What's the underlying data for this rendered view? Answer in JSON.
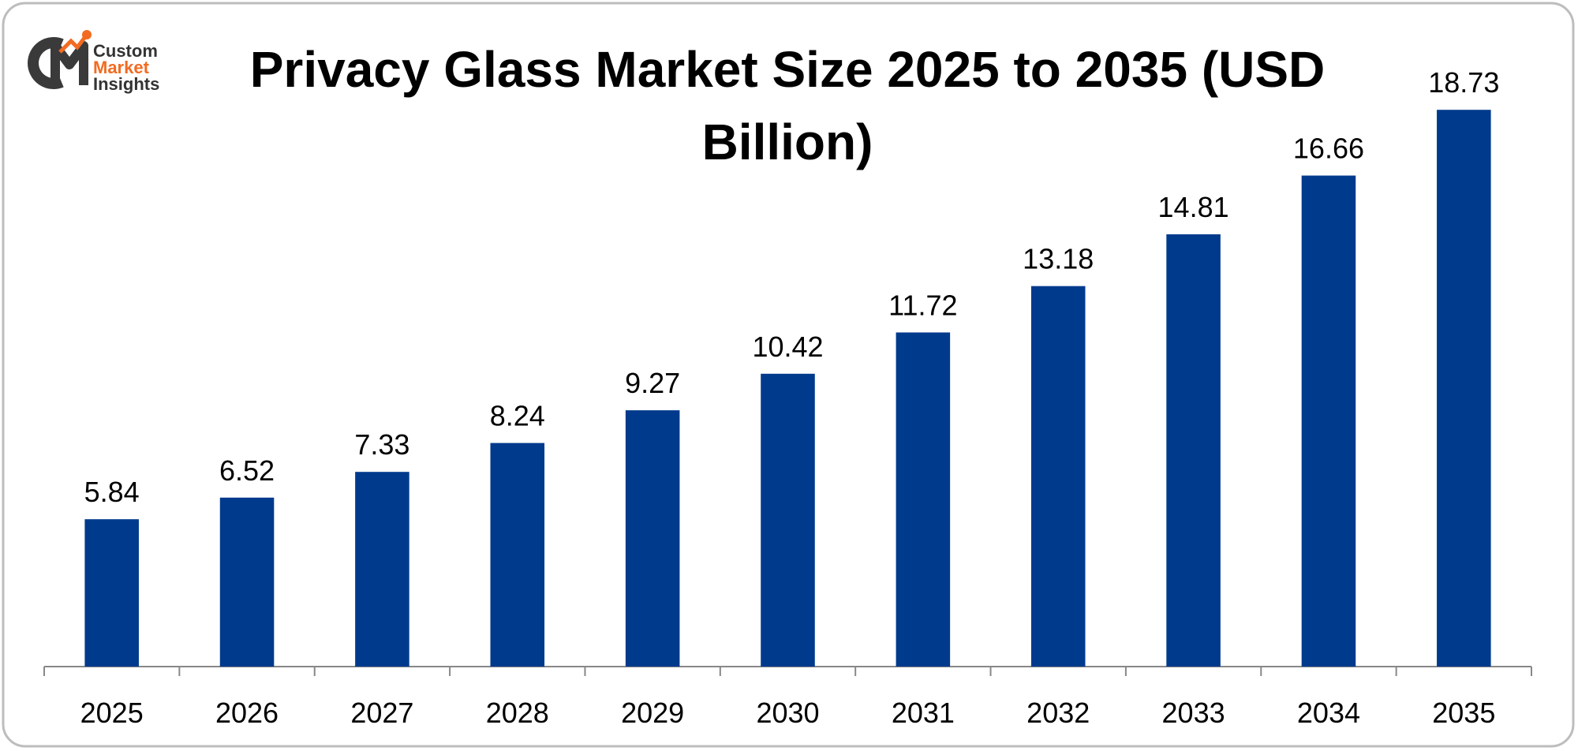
{
  "logo": {
    "lines": [
      "Custom",
      "Market",
      "Insights"
    ]
  },
  "chart_data": {
    "type": "bar",
    "title": "Privacy Glass Market Size 2025 to 2035 (USD Billion)",
    "categories": [
      "2025",
      "2026",
      "2027",
      "2028",
      "2029",
      "2030",
      "2031",
      "2032",
      "2033",
      "2034",
      "2035"
    ],
    "values": [
      5.84,
      6.52,
      7.33,
      8.24,
      9.27,
      10.42,
      11.72,
      13.18,
      14.81,
      16.66,
      18.73
    ],
    "color": "#003a8c",
    "ylim": [
      1.2,
      20.3
    ],
    "grid": false
  }
}
